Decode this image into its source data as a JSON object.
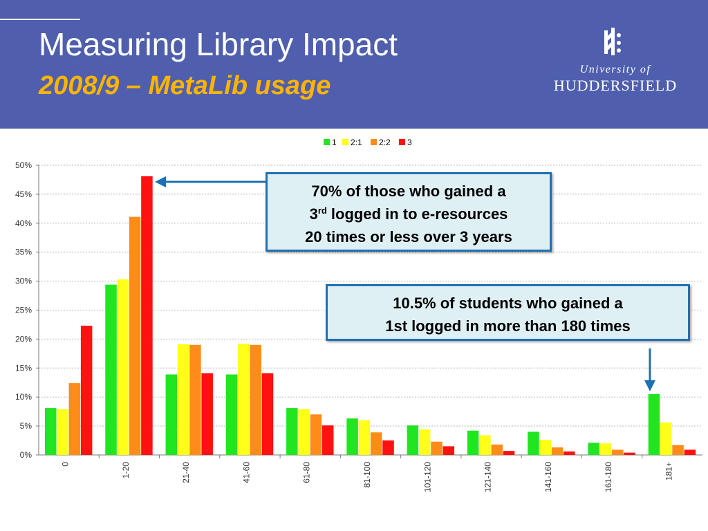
{
  "header": {
    "title": "Measuring Library Impact",
    "subtitle": "2008/9 – MetaLib usage",
    "logo_line1": "University of",
    "logo_line2": "HUDDERSFIELD"
  },
  "callouts": {
    "third": {
      "line1": "70% of those who gained a",
      "line2_prefix": "3",
      "line2_sup": "rd",
      "line2_rest": " logged in to e-resources",
      "line3": "20 times or less over 3 years"
    },
    "first": {
      "line1": "10.5% of students who gained a",
      "line2": "1st logged in more than 180 times"
    }
  },
  "colors": {
    "header_bg": "#4f5fae",
    "subtitle": "#ffb400",
    "callout_border": "#1f6fb4",
    "callout_bg": "#dff0f4",
    "arrow": "#1f6fb4"
  },
  "chart_data": {
    "type": "bar",
    "categories": [
      "0",
      "1-20",
      "21-40",
      "41-60",
      "61-80",
      "81-100",
      "101-120",
      "121-140",
      "141-160",
      "161-180",
      "181+"
    ],
    "series": [
      {
        "name": "1",
        "color": "#22e522",
        "values": [
          8.1,
          29.4,
          13.9,
          13.9,
          8.1,
          6.3,
          5.1,
          4.2,
          4.0,
          2.1,
          10.5
        ]
      },
      {
        "name": "2:1",
        "color": "#ffff1a",
        "values": [
          7.9,
          30.3,
          19.1,
          19.2,
          7.9,
          6.0,
          4.4,
          3.4,
          2.6,
          2.0,
          5.6
        ]
      },
      {
        "name": "2:2",
        "color": "#ff8c19",
        "values": [
          12.4,
          41.1,
          19.0,
          19.0,
          7.0,
          3.9,
          2.3,
          1.8,
          1.3,
          0.9,
          1.7
        ]
      },
      {
        "name": "3",
        "color": "#ff1111",
        "values": [
          22.3,
          48.1,
          14.1,
          14.1,
          5.1,
          2.5,
          1.5,
          0.7,
          0.6,
          0.4,
          0.9
        ]
      }
    ],
    "yticks": [
      "0%",
      "5%",
      "10%",
      "15%",
      "20%",
      "25%",
      "30%",
      "35%",
      "40%",
      "45%",
      "50%"
    ],
    "ylim": [
      0,
      50
    ],
    "grid": true,
    "legend_position": "top-center"
  }
}
